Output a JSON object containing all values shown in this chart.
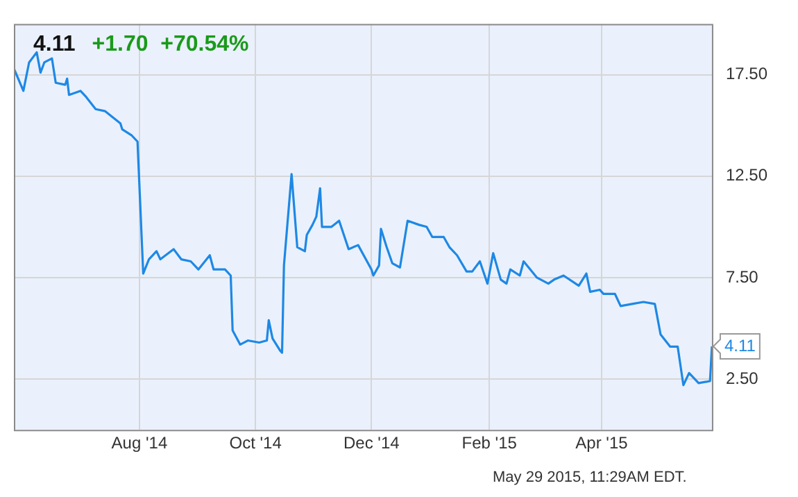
{
  "chart_data": {
    "type": "line",
    "title": "4.11",
    "subtitle": "+1.70  +70.54%",
    "x": [
      "2014-05-27",
      "2014-06-01",
      "2014-06-04",
      "2014-06-08",
      "2014-06-10",
      "2014-06-12",
      "2014-06-16",
      "2014-06-18",
      "2014-06-23",
      "2014-06-24",
      "2014-06-25",
      "2014-07-01",
      "2014-07-04",
      "2014-07-09",
      "2014-07-14",
      "2014-07-22",
      "2014-07-23",
      "2014-07-28",
      "2014-07-31",
      "2014-08-03",
      "2014-08-06",
      "2014-08-10",
      "2014-08-12",
      "2014-08-19",
      "2014-08-23",
      "2014-08-28",
      "2014-09-01",
      "2014-09-07",
      "2014-09-09",
      "2014-09-15",
      "2014-09-18",
      "2014-09-19",
      "2014-09-23",
      "2014-09-27",
      "2014-10-03",
      "2014-10-07",
      "2014-10-08",
      "2014-10-10",
      "2014-10-14",
      "2014-10-15",
      "2014-10-16",
      "2014-10-20",
      "2014-10-23",
      "2014-10-27",
      "2014-10-28",
      "2014-10-31",
      "2014-11-02",
      "2014-11-04",
      "2014-11-05",
      "2014-11-10",
      "2014-11-14",
      "2014-11-19",
      "2014-11-24",
      "2014-12-01",
      "2014-12-02",
      "2014-12-05",
      "2014-12-06",
      "2014-12-09",
      "2014-12-12",
      "2014-12-16",
      "2014-12-20",
      "2014-12-26",
      "2014-12-30",
      "2015-01-02",
      "2015-01-08",
      "2015-01-11",
      "2015-01-15",
      "2015-01-20",
      "2015-01-23",
      "2015-01-27",
      "2015-01-31",
      "2015-02-03",
      "2015-02-07",
      "2015-02-10",
      "2015-02-12",
      "2015-02-17",
      "2015-02-19",
      "2015-02-26",
      "2015-03-04",
      "2015-03-07",
      "2015-03-12",
      "2015-03-20",
      "2015-03-24",
      "2015-03-26",
      "2015-03-31",
      "2015-04-02",
      "2015-04-08",
      "2015-04-11",
      "2015-04-17",
      "2015-04-23",
      "2015-04-29",
      "2015-05-02",
      "2015-05-07",
      "2015-05-11",
      "2015-05-14",
      "2015-05-17",
      "2015-05-22",
      "2015-05-28",
      "2015-05-29"
    ],
    "series": [
      {
        "color": "#1e88e5",
        "values": [
          17.8,
          16.7,
          18.1,
          18.6,
          17.6,
          18.1,
          18.3,
          17.1,
          17.0,
          17.3,
          16.5,
          16.7,
          16.4,
          15.8,
          15.7,
          15.1,
          14.8,
          14.5,
          14.2,
          7.7,
          8.4,
          8.8,
          8.4,
          8.9,
          8.4,
          8.3,
          7.9,
          8.6,
          7.9,
          7.9,
          7.6,
          4.9,
          4.2,
          4.4,
          4.3,
          4.4,
          5.4,
          4.5,
          3.9,
          3.8,
          8.1,
          12.6,
          9.0,
          8.8,
          9.6,
          10.1,
          10.5,
          11.9,
          10.0,
          10.0,
          10.3,
          8.9,
          9.1,
          7.9,
          7.6,
          8.1,
          9.9,
          9.0,
          8.2,
          8.0,
          10.3,
          10.1,
          10.0,
          9.5,
          9.5,
          9.0,
          8.6,
          7.8,
          7.8,
          8.3,
          7.2,
          8.7,
          7.4,
          7.2,
          7.9,
          7.6,
          8.3,
          7.5,
          7.2,
          7.4,
          7.6,
          7.1,
          7.7,
          6.8,
          6.9,
          6.7,
          6.7,
          6.1,
          6.2,
          6.3,
          6.2,
          4.7,
          4.1,
          4.1,
          2.2,
          2.8,
          2.3,
          2.4,
          4.11
        ]
      }
    ],
    "xlim": [
      "2014-05-27",
      "2015-05-29"
    ],
    "xticks": [
      {
        "value": "2014-08-01",
        "label": "Aug '14"
      },
      {
        "value": "2014-10-01",
        "label": "Oct '14"
      },
      {
        "value": "2014-12-01",
        "label": "Dec '14"
      },
      {
        "value": "2015-02-01",
        "label": "Feb '15"
      },
      {
        "value": "2015-04-01",
        "label": "Apr '15"
      }
    ],
    "ylim": [
      0,
      20
    ],
    "yticks": [
      {
        "value": 2.5,
        "label": "2.50"
      },
      {
        "value": 7.5,
        "label": "7.50"
      },
      {
        "value": 12.5,
        "label": "12.50"
      },
      {
        "value": 17.5,
        "label": "17.50"
      }
    ],
    "grid": true,
    "marker": "none",
    "line_style": "solid",
    "annotations": [
      {
        "text": "4.11",
        "x": "2015-05-29",
        "y": 4.11
      },
      "May 29 2015, 11:29AM EDT."
    ]
  }
}
